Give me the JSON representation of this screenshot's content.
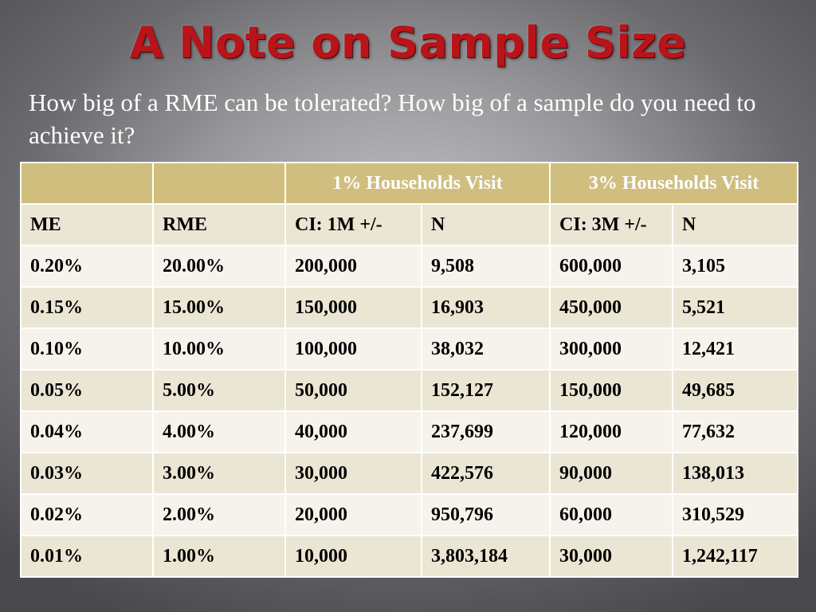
{
  "slide": {
    "title": "A Note on Sample Size",
    "subtitle": "How big of a RME can be tolerated? How big of a sample do you need to achieve it?"
  },
  "table": {
    "group_headers": [
      "",
      "",
      "1% Households Visit",
      "3% Households Visit"
    ],
    "columns": [
      "ME",
      "RME",
      "CI: 1M +/-",
      "N",
      "CI: 3M +/-",
      "N"
    ],
    "rows": [
      [
        "0.20%",
        "20.00%",
        "200,000",
        "9,508",
        "600,000",
        "3,105"
      ],
      [
        "0.15%",
        "15.00%",
        "150,000",
        "16,903",
        "450,000",
        "5,521"
      ],
      [
        "0.10%",
        "10.00%",
        "100,000",
        "38,032",
        "300,000",
        "12,421"
      ],
      [
        "0.05%",
        "5.00%",
        "50,000",
        "152,127",
        "150,000",
        "49,685"
      ],
      [
        "0.04%",
        "4.00%",
        "40,000",
        "237,699",
        "120,000",
        "77,632"
      ],
      [
        "0.03%",
        "3.00%",
        "30,000",
        "422,576",
        "90,000",
        "138,013"
      ],
      [
        "0.02%",
        "2.00%",
        "20,000",
        "950,796",
        "60,000",
        "310,529"
      ],
      [
        "0.01%",
        "1.00%",
        "10,000",
        "3,803,184",
        "30,000",
        "1,242,117"
      ]
    ]
  },
  "colors": {
    "title": "#b8141a",
    "header_fill": "#cfbe7e",
    "row_dark": "#ebe5d4",
    "row_light": "#f6f3ec"
  }
}
